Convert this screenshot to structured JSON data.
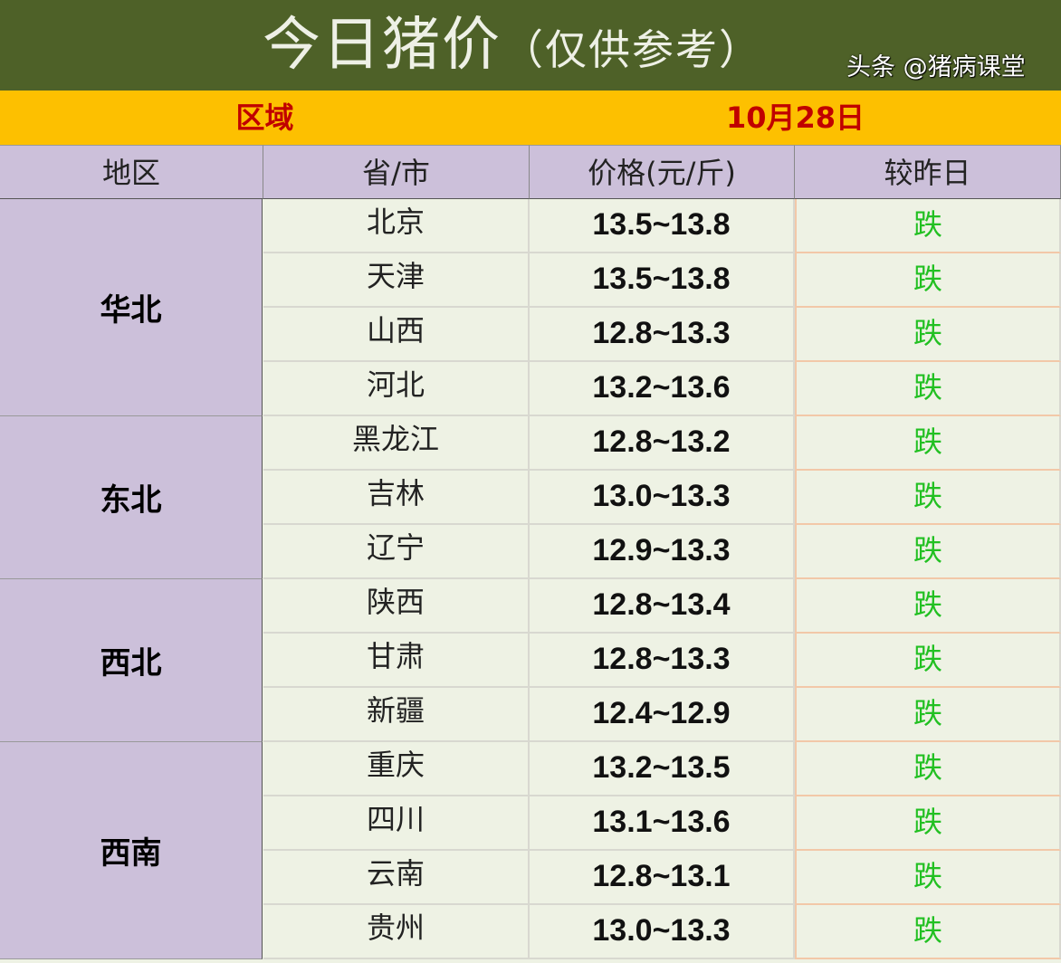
{
  "title": "今日猪价",
  "subtitle": "（仅供参考）",
  "band": {
    "left": "区域",
    "right": "10月28日"
  },
  "headers": [
    "地区",
    "省/市",
    "价格(元/斤)",
    "较昨日"
  ],
  "regions": [
    {
      "name": "华北",
      "rows": [
        {
          "province": "北京",
          "price": "13.5~13.8",
          "change": "跌"
        },
        {
          "province": "天津",
          "price": "13.5~13.8",
          "change": "跌"
        },
        {
          "province": "山西",
          "price": "12.8~13.3",
          "change": "跌"
        },
        {
          "province": "河北",
          "price": "13.2~13.6",
          "change": "跌"
        }
      ]
    },
    {
      "name": "东北",
      "rows": [
        {
          "province": "黑龙江",
          "price": "12.8~13.2",
          "change": "跌"
        },
        {
          "province": "吉林",
          "price": "13.0~13.3",
          "change": "跌"
        },
        {
          "province": "辽宁",
          "price": "12.9~13.3",
          "change": "跌"
        }
      ]
    },
    {
      "name": "西北",
      "rows": [
        {
          "province": "陕西",
          "price": "12.8~13.4",
          "change": "跌"
        },
        {
          "province": "甘肃",
          "price": "12.8~13.3",
          "change": "跌"
        },
        {
          "province": "新疆",
          "price": "12.4~12.9",
          "change": "跌"
        }
      ]
    },
    {
      "name": "西南",
      "rows": [
        {
          "province": "重庆",
          "price": "13.2~13.5",
          "change": "跌"
        },
        {
          "province": "四川",
          "price": "13.1~13.6",
          "change": "跌"
        },
        {
          "province": "云南",
          "price": "12.8~13.1",
          "change": "跌"
        },
        {
          "province": "贵州",
          "price": "13.0~13.3",
          "change": "跌"
        }
      ]
    }
  ],
  "watermark": "头条 @猪病课堂",
  "colors": {
    "title_bg": "#4e6128",
    "band_bg": "#fdc000",
    "header_bg": "#ccc0da",
    "fall": "#22c022"
  }
}
